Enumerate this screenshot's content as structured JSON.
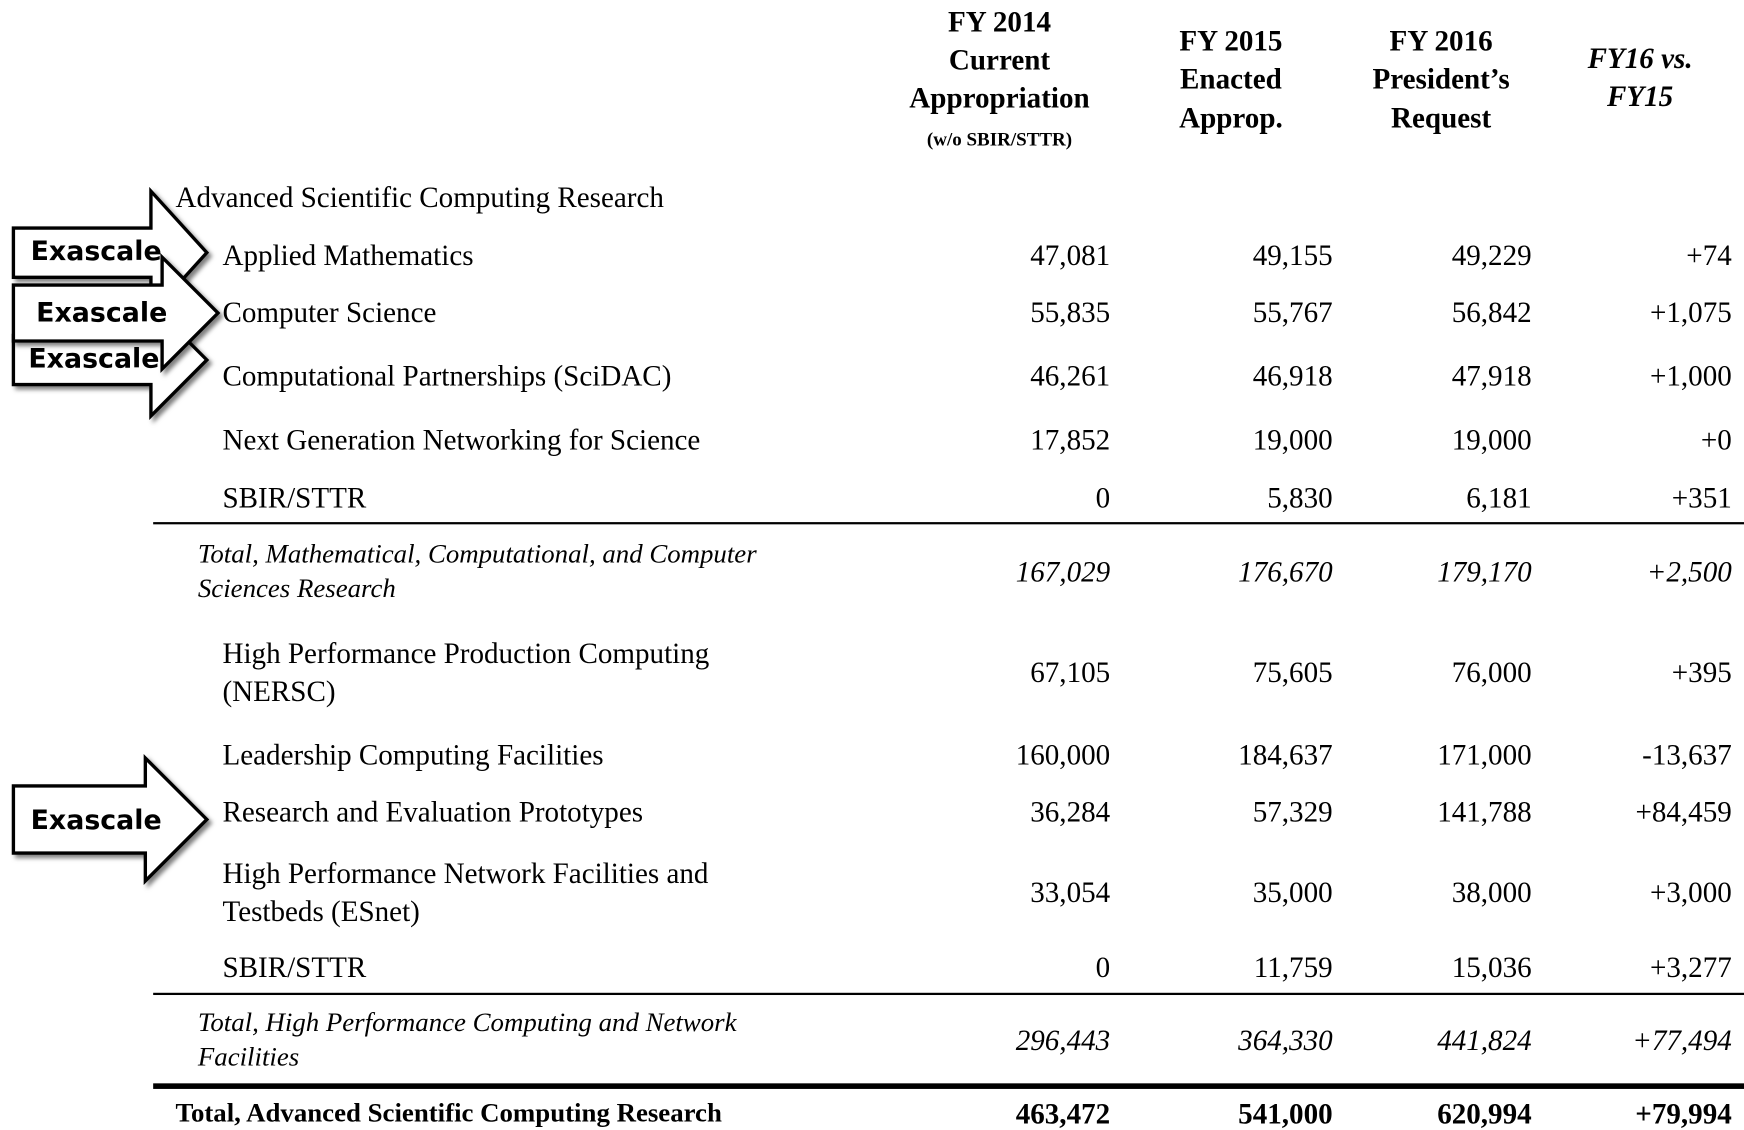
{
  "header": {
    "columns": [
      {
        "lines": [
          "FY 2014",
          "Current",
          "Appropriation"
        ],
        "note": "(w/o SBIR/STTR)"
      },
      {
        "lines": [
          "FY 2015",
          "Enacted",
          "Approp."
        ]
      },
      {
        "lines": [
          "FY 2016",
          "President’s",
          "Request"
        ]
      },
      {
        "lines": [
          "FY16 vs.",
          "FY15"
        ]
      }
    ]
  },
  "table": {
    "rows": [
      {
        "style": "section",
        "label": [
          "Advanced Scientific Computing Research"
        ]
      },
      {
        "style": "item",
        "label": [
          "Applied Mathematics"
        ],
        "values": [
          "47,081",
          "49,155",
          "49,229",
          "+74"
        ]
      },
      {
        "style": "item",
        "label": [
          "Computer Science"
        ],
        "values": [
          "55,835",
          "55,767",
          "56,842",
          "+1,075"
        ]
      },
      {
        "style": "item",
        "label": [
          "Computational Partnerships (SciDAC)"
        ],
        "values": [
          "46,261",
          "46,918",
          "47,918",
          "+1,000"
        ]
      },
      {
        "style": "item",
        "label": [
          "Next Generation Networking for Science"
        ],
        "values": [
          "17,852",
          "19,000",
          "19,000",
          "+0"
        ]
      },
      {
        "style": "item",
        "label": [
          "SBIR/STTR"
        ],
        "values": [
          "0",
          "5,830",
          "6,181",
          "+351"
        ]
      },
      {
        "style": "subtotal",
        "label": [
          "Total, Mathematical, Computational, and Computer",
          "Sciences Research"
        ],
        "values": [
          "167,029",
          "176,670",
          "179,170",
          "+2,500"
        ]
      },
      {
        "style": "item",
        "label": [
          "High Performance Production Computing",
          "(NERSC)"
        ],
        "values": [
          "67,105",
          "75,605",
          "76,000",
          "+395"
        ]
      },
      {
        "style": "item",
        "label": [
          "Leadership Computing Facilities"
        ],
        "values": [
          "160,000",
          "184,637",
          "171,000",
          "-13,637"
        ]
      },
      {
        "style": "item",
        "label": [
          "Research and Evaluation Prototypes"
        ],
        "values": [
          "36,284",
          "57,329",
          "141,788",
          "+84,459"
        ]
      },
      {
        "style": "item",
        "label": [
          "High Performance Network Facilities and",
          "Testbeds (ESnet)"
        ],
        "values": [
          "33,054",
          "35,000",
          "38,000",
          "+3,000"
        ]
      },
      {
        "style": "item",
        "label": [
          "SBIR/STTR"
        ],
        "values": [
          "0",
          "11,759",
          "15,036",
          "+3,277"
        ]
      },
      {
        "style": "subtotal",
        "label": [
          "Total, High Performance Computing and Network",
          "Facilities"
        ],
        "values": [
          "296,443",
          "364,330",
          "441,824",
          "+77,494"
        ]
      },
      {
        "style": "total",
        "label": [
          "Total, Advanced Scientific Computing Research"
        ],
        "values": [
          "463,472",
          "541,000",
          "620,994",
          "+79,994"
        ]
      }
    ]
  },
  "annotations": [
    "Exascale",
    "Exascale",
    "Exascale",
    "Exascale"
  ]
}
